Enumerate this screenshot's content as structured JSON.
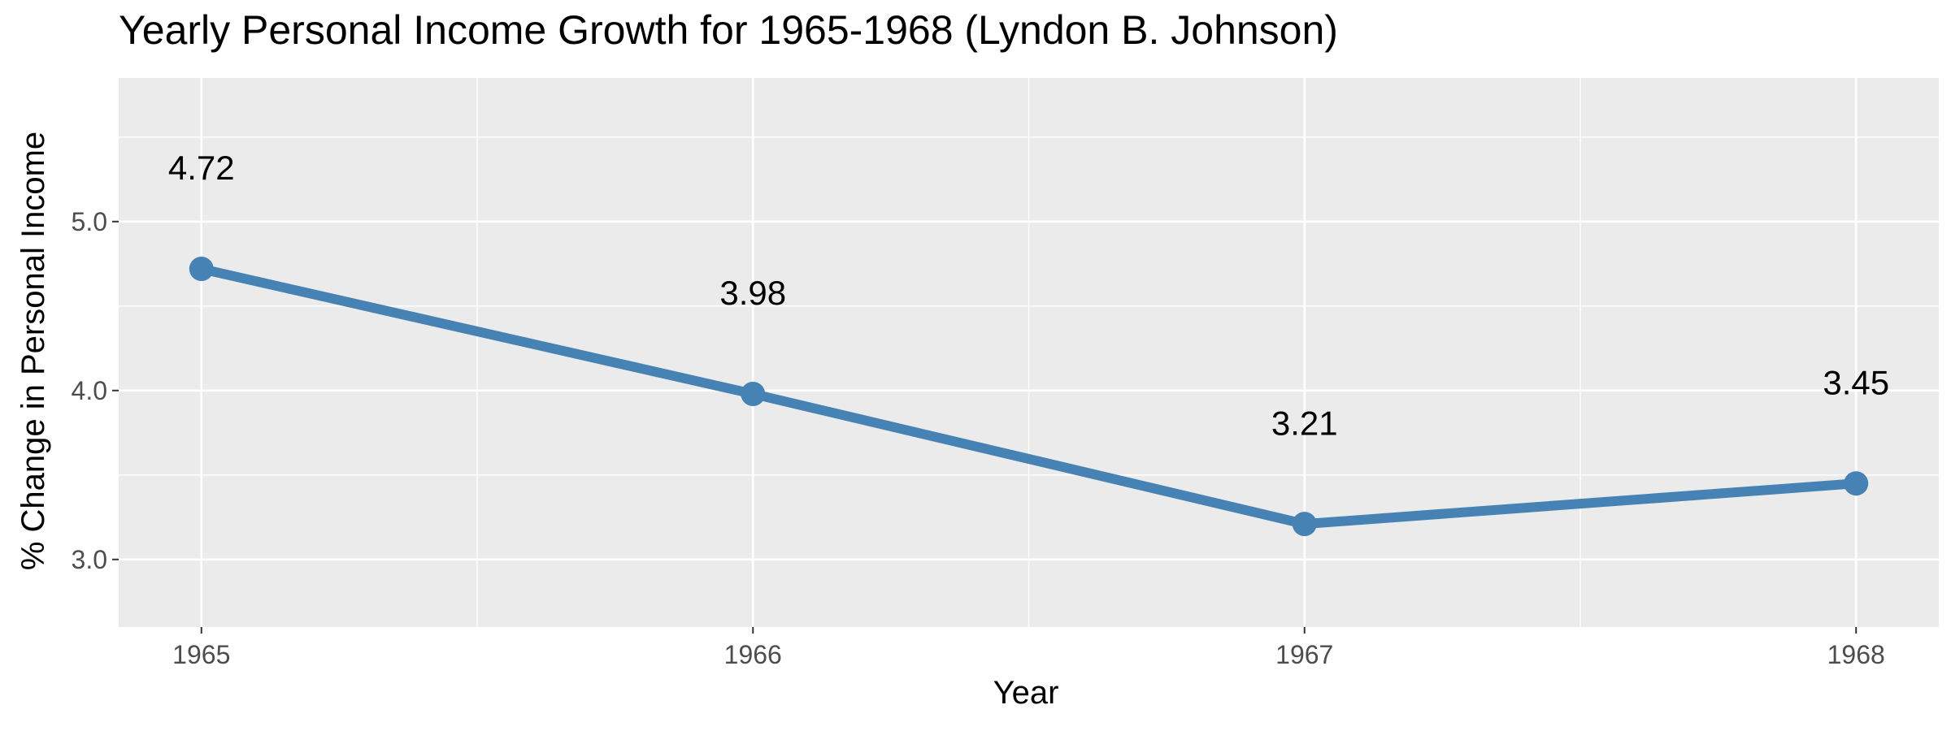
{
  "chart_data": {
    "type": "line",
    "title": "Yearly Personal Income Growth for 1965-1968 (Lyndon B. Johnson)",
    "xlabel": "Year",
    "ylabel": "% Change in Personal Income",
    "x": [
      1965,
      1966,
      1967,
      1968
    ],
    "series": [
      {
        "values": [
          4.72,
          3.98,
          3.21,
          3.45
        ]
      }
    ],
    "data_labels": [
      "4.72",
      "3.98",
      "3.21",
      "3.45"
    ],
    "x_ticks": [
      "1965",
      "1966",
      "1967",
      "1968"
    ],
    "y_ticks": [
      3.0,
      4.0,
      5.0
    ],
    "y_tick_labels": [
      "3.0",
      "4.0",
      "5.0"
    ],
    "xlim": [
      1964.85,
      1968.15
    ],
    "ylim": [
      2.6,
      5.85
    ],
    "grid": true,
    "legend": "none",
    "colors": {
      "line": "#4682B4",
      "panel": "#EBEBEB",
      "grid": "#FFFFFF",
      "tick_text": "#4D4D4D",
      "text": "#000000"
    }
  }
}
